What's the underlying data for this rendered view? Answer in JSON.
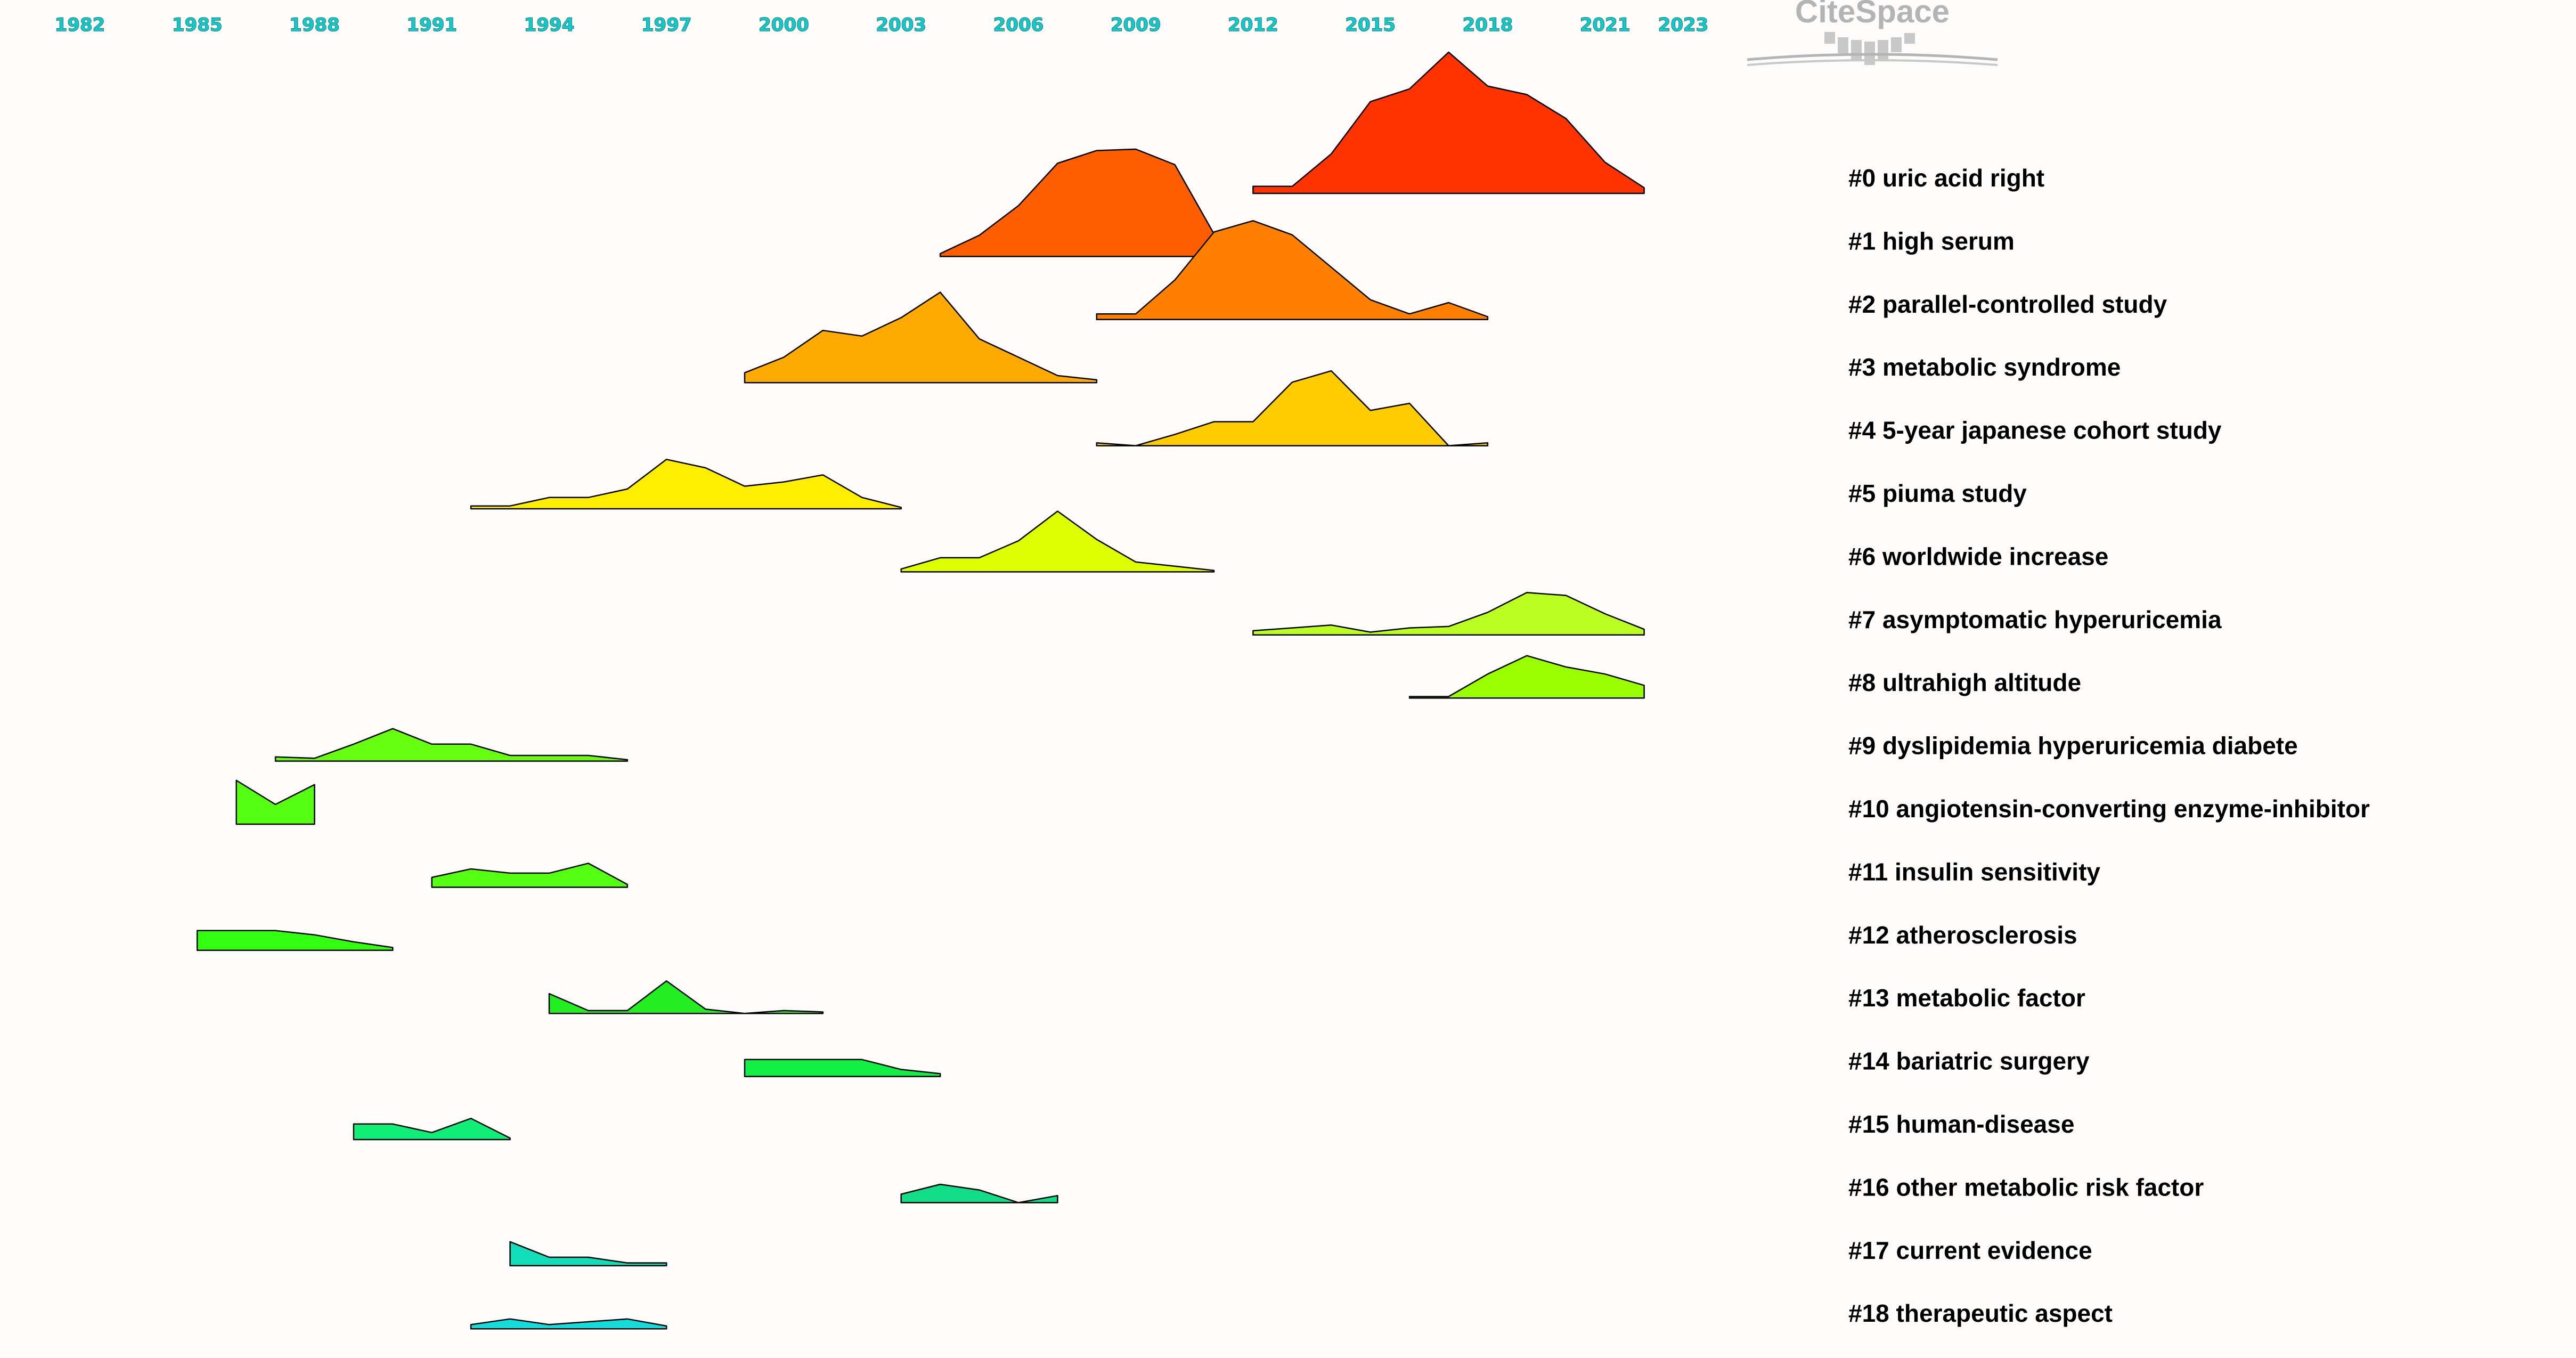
{
  "logo": {
    "text": "CiteSpace"
  },
  "chart_data": {
    "type": "area",
    "x_ticks": [
      1982,
      1985,
      1988,
      1991,
      1994,
      1997,
      2000,
      2003,
      2006,
      2009,
      2012,
      2015,
      2018,
      2021,
      2023
    ],
    "xlim": [
      1982,
      2023
    ],
    "clusters": [
      {
        "label": "#0 uric acid right",
        "color": "#ff3300",
        "x": [
          2012,
          2013,
          2014,
          2015,
          2016,
          2017,
          2018,
          2019,
          2020,
          2021,
          2022
        ],
        "y": [
          0.05,
          0.05,
          0.28,
          0.65,
          0.74,
          1.0,
          0.76,
          0.7,
          0.53,
          0.22,
          0.04
        ]
      },
      {
        "label": "#1 high serum",
        "color": "#ff5e00",
        "x": [
          2004,
          2005,
          2006,
          2007,
          2008,
          2009,
          2010,
          2011
        ],
        "y": [
          0.02,
          0.15,
          0.36,
          0.66,
          0.75,
          0.76,
          0.65,
          0.16
        ]
      },
      {
        "label": "#2 parallel-controlled study",
        "color": "#ff8000",
        "x": [
          2008,
          2009,
          2010,
          2011,
          2012,
          2013,
          2014,
          2015,
          2016,
          2017,
          2018
        ],
        "y": [
          0.04,
          0.04,
          0.28,
          0.62,
          0.7,
          0.6,
          0.37,
          0.14,
          0.04,
          0.12,
          0.02
        ]
      },
      {
        "label": "#3 metabolic syndrome",
        "color": "#ffaa00",
        "x": [
          1999,
          2000,
          2001,
          2002,
          2003,
          2004,
          2005,
          2006,
          2007,
          2008
        ],
        "y": [
          0.07,
          0.18,
          0.37,
          0.33,
          0.46,
          0.64,
          0.31,
          0.18,
          0.05,
          0.02
        ]
      },
      {
        "label": "#4 5-year japanese cohort study",
        "color": "#ffcc00",
        "x": [
          2008,
          2009,
          2010,
          2011,
          2012,
          2013,
          2014,
          2015,
          2016,
          2017,
          2018
        ],
        "y": [
          0.02,
          0.0,
          0.08,
          0.17,
          0.17,
          0.45,
          0.53,
          0.25,
          0.3,
          0.0,
          0.02
        ]
      },
      {
        "label": "#5 piuma study",
        "color": "#ffee00",
        "x": [
          1992,
          1993,
          1994,
          1995,
          1996,
          1997,
          1998,
          1999,
          2000,
          2001,
          2002,
          2003
        ],
        "y": [
          0.02,
          0.02,
          0.08,
          0.08,
          0.14,
          0.35,
          0.29,
          0.16,
          0.19,
          0.24,
          0.08,
          0.01
        ]
      },
      {
        "label": "#6 worldwide increase",
        "color": "#ddff00",
        "x": [
          2003,
          2004,
          2005,
          2006,
          2007,
          2008,
          2009,
          2010,
          2011
        ],
        "y": [
          0.02,
          0.1,
          0.1,
          0.22,
          0.43,
          0.23,
          0.07,
          0.04,
          0.01
        ]
      },
      {
        "label": "#7 asymptomatic hyperuricemia",
        "color": "#bbff22",
        "x": [
          2012,
          2013,
          2014,
          2015,
          2016,
          2017,
          2018,
          2019,
          2020,
          2021,
          2022
        ],
        "y": [
          0.03,
          0.05,
          0.07,
          0.02,
          0.05,
          0.06,
          0.16,
          0.3,
          0.28,
          0.15,
          0.04
        ]
      },
      {
        "label": "#8 ultrahigh altitude",
        "color": "#99ff00",
        "x": [
          2016,
          2017,
          2018,
          2019,
          2020,
          2021,
          2022
        ],
        "y": [
          0.01,
          0.01,
          0.17,
          0.3,
          0.22,
          0.17,
          0.09
        ]
      },
      {
        "label": "#9 dyslipidemia hyperuricemia diabete",
        "color": "#66ff11",
        "x": [
          1987,
          1988,
          1989,
          1990,
          1991,
          1992,
          1993,
          1994,
          1995,
          1996
        ],
        "y": [
          0.03,
          0.02,
          0.12,
          0.23,
          0.12,
          0.12,
          0.04,
          0.04,
          0.04,
          0.01
        ]
      },
      {
        "label": "#10 angiotensin-converting enzyme-inhibitor",
        "color": "#55ff11",
        "x": [
          1986,
          1987,
          1988
        ],
        "y": [
          0.31,
          0.14,
          0.28
        ]
      },
      {
        "label": "#11 insulin sensitivity",
        "color": "#55ff11",
        "x": [
          1991,
          1992,
          1993,
          1994,
          1995,
          1996
        ],
        "y": [
          0.07,
          0.13,
          0.1,
          0.1,
          0.17,
          0.02
        ]
      },
      {
        "label": "#12 atherosclerosis",
        "color": "#33ff11",
        "x": [
          1985,
          1986,
          1987,
          1988,
          1989,
          1990
        ],
        "y": [
          0.14,
          0.14,
          0.14,
          0.11,
          0.06,
          0.02
        ]
      },
      {
        "label": "#13 metabolic factor",
        "color": "#22ee22",
        "x": [
          1994,
          1995,
          1996,
          1997,
          1998,
          1999,
          2000,
          2001
        ],
        "y": [
          0.14,
          0.02,
          0.02,
          0.23,
          0.03,
          0.0,
          0.02,
          0.01
        ]
      },
      {
        "label": "#14 bariatric surgery",
        "color": "#11ee44",
        "x": [
          1999,
          2000,
          2001,
          2002,
          2003,
          2004
        ],
        "y": [
          0.12,
          0.12,
          0.12,
          0.12,
          0.05,
          0.02
        ]
      },
      {
        "label": "#15 human-disease",
        "color": "#11ee77",
        "x": [
          1989,
          1990,
          1991,
          1992,
          1993
        ],
        "y": [
          0.11,
          0.11,
          0.05,
          0.15,
          0.01
        ]
      },
      {
        "label": "#16 other metabolic risk factor",
        "color": "#11dd88",
        "x": [
          2003,
          2004,
          2005,
          2006,
          2007
        ],
        "y": [
          0.06,
          0.13,
          0.09,
          0.0,
          0.05
        ]
      },
      {
        "label": "#17 current evidence",
        "color": "#11ddbb",
        "x": [
          1993,
          1994,
          1995,
          1996,
          1997
        ],
        "y": [
          0.17,
          0.06,
          0.06,
          0.02,
          0.02
        ]
      },
      {
        "label": "#18 therapeutic aspect",
        "color": "#11dddd",
        "x": [
          1992,
          1993,
          1994,
          1995,
          1996,
          1997
        ],
        "y": [
          0.03,
          0.07,
          0.03,
          0.05,
          0.07,
          0.02
        ]
      }
    ]
  }
}
